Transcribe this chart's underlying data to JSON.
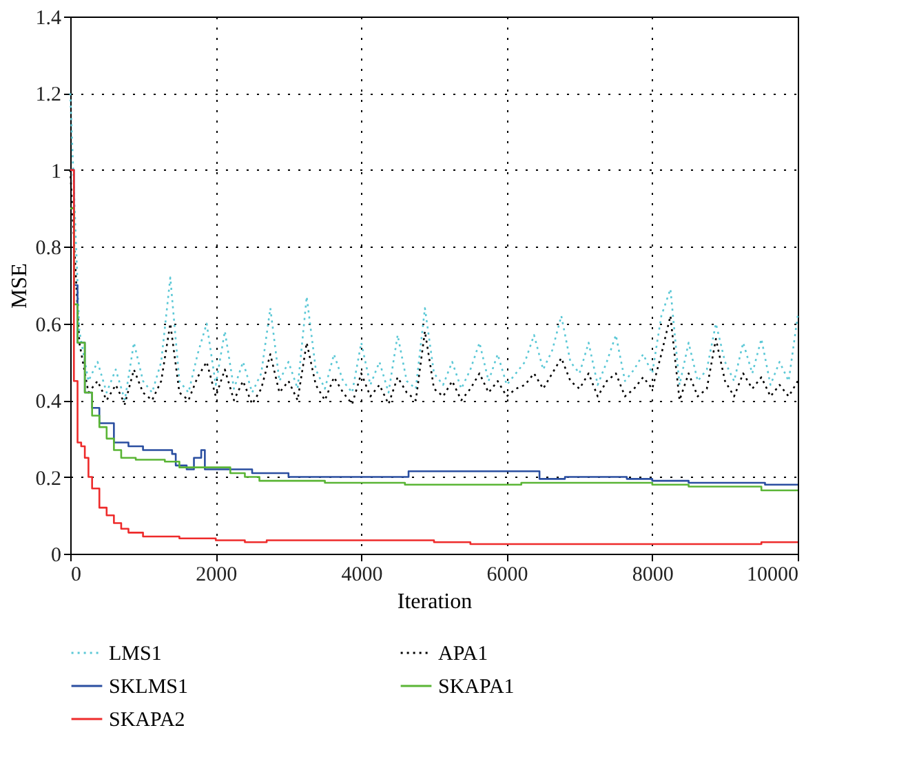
{
  "chart_data": {
    "type": "line",
    "xlabel": "Iteration",
    "ylabel": "MSE",
    "xlim": [
      0,
      10000
    ],
    "xticks": [
      0,
      2000,
      4000,
      6000,
      8000,
      10000
    ],
    "ylim": [
      0,
      1.4
    ],
    "yticks": [
      0,
      0.2,
      0.4,
      0.6,
      0.8,
      1,
      1.2,
      1.4
    ],
    "grid": true,
    "legend": "bottom",
    "marker": "none",
    "x": [
      0,
      125,
      250,
      375,
      500,
      625,
      750,
      875,
      1000,
      1125,
      1250,
      1375,
      1500,
      1625,
      1750,
      1875,
      2000,
      2125,
      2250,
      2375,
      2500,
      2625,
      2750,
      2875,
      3000,
      3125,
      3250,
      3375,
      3500,
      3625,
      3750,
      3875,
      4000,
      4125,
      4250,
      4375,
      4500,
      4625,
      4750,
      4875,
      5000,
      5125,
      5250,
      5375,
      5500,
      5625,
      5750,
      5875,
      6000,
      6125,
      6250,
      6375,
      6500,
      6625,
      6750,
      6875,
      7000,
      7125,
      7250,
      7375,
      7500,
      7625,
      7750,
      7875,
      8000,
      8125,
      8250,
      8375,
      8500,
      8625,
      8750,
      8875,
      9000,
      9125,
      9250,
      9375,
      9500,
      9625,
      9750,
      9875,
      10000
    ],
    "series": [
      {
        "name": "LMS1",
        "color": "#5bc8d6",
        "line_style": "dotted",
        "values": [
          1.2,
          0.58,
          0.45,
          0.5,
          0.42,
          0.48,
          0.4,
          0.55,
          0.45,
          0.42,
          0.5,
          0.72,
          0.45,
          0.42,
          0.52,
          0.6,
          0.44,
          0.58,
          0.43,
          0.5,
          0.42,
          0.47,
          0.64,
          0.45,
          0.5,
          0.43,
          0.67,
          0.48,
          0.43,
          0.52,
          0.45,
          0.42,
          0.55,
          0.44,
          0.5,
          0.42,
          0.57,
          0.45,
          0.43,
          0.64,
          0.47,
          0.44,
          0.5,
          0.43,
          0.48,
          0.55,
          0.45,
          0.52,
          0.44,
          0.47,
          0.5,
          0.57,
          0.48,
          0.53,
          0.62,
          0.5,
          0.47,
          0.55,
          0.44,
          0.5,
          0.57,
          0.45,
          0.48,
          0.52,
          0.47,
          0.62,
          0.69,
          0.44,
          0.55,
          0.45,
          0.48,
          0.6,
          0.5,
          0.45,
          0.55,
          0.47,
          0.56,
          0.44,
          0.5,
          0.45,
          0.62
        ]
      },
      {
        "name": "APA1",
        "color": "#000000",
        "line_style": "dotted",
        "values": [
          1.0,
          0.55,
          0.42,
          0.45,
          0.4,
          0.44,
          0.39,
          0.48,
          0.42,
          0.4,
          0.45,
          0.6,
          0.42,
          0.4,
          0.46,
          0.5,
          0.41,
          0.48,
          0.4,
          0.45,
          0.39,
          0.43,
          0.52,
          0.42,
          0.45,
          0.4,
          0.55,
          0.44,
          0.4,
          0.46,
          0.42,
          0.39,
          0.47,
          0.41,
          0.44,
          0.39,
          0.46,
          0.42,
          0.4,
          0.58,
          0.43,
          0.41,
          0.45,
          0.4,
          0.43,
          0.47,
          0.42,
          0.45,
          0.41,
          0.43,
          0.44,
          0.47,
          0.43,
          0.47,
          0.51,
          0.45,
          0.43,
          0.47,
          0.41,
          0.45,
          0.47,
          0.41,
          0.43,
          0.46,
          0.43,
          0.52,
          0.62,
          0.4,
          0.47,
          0.41,
          0.43,
          0.56,
          0.45,
          0.41,
          0.47,
          0.43,
          0.46,
          0.41,
          0.44,
          0.41,
          0.45
        ]
      },
      {
        "name": "SKLMS1",
        "color": "#2a4ea0",
        "type": "step",
        "line_style": "solid",
        "x": [
          0,
          50,
          100,
          200,
          300,
          400,
          600,
          800,
          1000,
          1200,
          1400,
          1450,
          1600,
          1700,
          1800,
          1850,
          2500,
          3000,
          4600,
          4650,
          6400,
          6450,
          6800,
          7600,
          7650,
          8000,
          8500,
          9500,
          9550,
          10000
        ],
        "values": [
          1.0,
          0.7,
          0.55,
          0.42,
          0.38,
          0.34,
          0.29,
          0.28,
          0.27,
          0.27,
          0.26,
          0.23,
          0.22,
          0.25,
          0.27,
          0.22,
          0.21,
          0.2,
          0.2,
          0.215,
          0.215,
          0.195,
          0.2,
          0.2,
          0.195,
          0.19,
          0.185,
          0.185,
          0.18,
          0.18
        ]
      },
      {
        "name": "SKAPA1",
        "color": "#5ab535",
        "type": "step",
        "line_style": "solid",
        "x": [
          0,
          50,
          100,
          200,
          300,
          400,
          500,
          600,
          700,
          900,
          1300,
          1500,
          2000,
          2200,
          2400,
          2600,
          3500,
          4600,
          6200,
          8000,
          8500,
          9500,
          10000
        ],
        "values": [
          0.9,
          0.65,
          0.55,
          0.42,
          0.36,
          0.33,
          0.3,
          0.27,
          0.25,
          0.245,
          0.24,
          0.225,
          0.225,
          0.21,
          0.2,
          0.19,
          0.185,
          0.18,
          0.185,
          0.18,
          0.175,
          0.165,
          0.165
        ]
      },
      {
        "name": "SKAPA2",
        "color": "#ee2b2b",
        "type": "step",
        "line_style": "solid",
        "x": [
          0,
          50,
          100,
          150,
          200,
          250,
          300,
          400,
          500,
          600,
          700,
          800,
          1000,
          1500,
          2000,
          2400,
          2700,
          5000,
          5500,
          9000,
          9500,
          10000
        ],
        "values": [
          1.0,
          0.45,
          0.29,
          0.28,
          0.25,
          0.2,
          0.17,
          0.12,
          0.1,
          0.08,
          0.065,
          0.055,
          0.045,
          0.04,
          0.035,
          0.03,
          0.035,
          0.03,
          0.025,
          0.025,
          0.03,
          0.03
        ]
      }
    ]
  }
}
